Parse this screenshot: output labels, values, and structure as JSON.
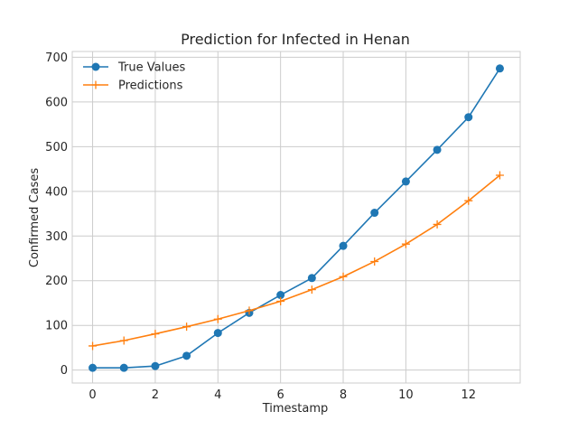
{
  "chart_data": {
    "type": "line",
    "title": "Prediction for Infected in Henan",
    "xlabel": "Timestamp",
    "ylabel": "Confirmed Cases",
    "xlim": [
      -0.65,
      13.65
    ],
    "ylim": [
      -29,
      713
    ],
    "xticks": [
      0,
      2,
      4,
      6,
      8,
      10,
      12
    ],
    "yticks": [
      0,
      100,
      200,
      300,
      400,
      500,
      600,
      700
    ],
    "grid": true,
    "legend_position": "upper-left",
    "x": [
      0,
      1,
      2,
      3,
      4,
      5,
      6,
      7,
      8,
      9,
      10,
      11,
      12,
      13
    ],
    "series": [
      {
        "name": "True Values",
        "color": "#1f77b4",
        "marker": "circle",
        "values": [
          5,
          5,
          9,
          32,
          83,
          128,
          168,
          206,
          278,
          352,
          422,
          493,
          566,
          675
        ]
      },
      {
        "name": "Predictions",
        "color": "#ff7f0e",
        "marker": "plus",
        "values": [
          54,
          66,
          81,
          97,
          114,
          133,
          154,
          180,
          209,
          243,
          282,
          326,
          379,
          436
        ]
      }
    ]
  }
}
